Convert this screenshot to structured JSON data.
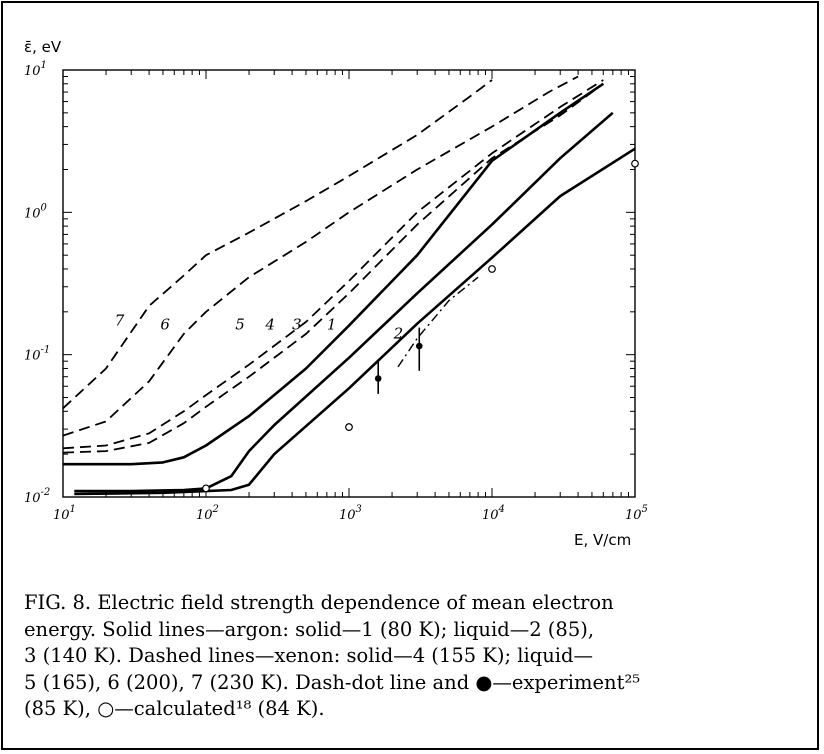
{
  "chart_data": {
    "type": "line",
    "title": "",
    "xlabel": "E, V/cm",
    "ylabel": "ε̄, eV",
    "xscale": "log",
    "yscale": "log",
    "xlim": [
      10,
      100000
    ],
    "ylim": [
      0.01,
      10
    ],
    "x_tick_labels": [
      {
        "value": 10,
        "base": "10",
        "exp": "1"
      },
      {
        "value": 100,
        "base": "10",
        "exp": "2"
      },
      {
        "value": 1000,
        "base": "10",
        "exp": "3"
      },
      {
        "value": 10000,
        "base": "10",
        "exp": "4"
      },
      {
        "value": 100000,
        "base": "10",
        "exp": "5"
      }
    ],
    "y_tick_labels": [
      {
        "value": 0.01,
        "base": "10",
        "exp": "-2"
      },
      {
        "value": 0.1,
        "base": "10",
        "exp": "-1"
      },
      {
        "value": 1,
        "base": "10",
        "exp": "0"
      },
      {
        "value": 10,
        "base": "10",
        "exp": "1"
      }
    ],
    "grid": false,
    "series": [
      {
        "name": "1",
        "style": "solid",
        "label_at": [
          700,
          0.15
        ],
        "points": [
          [
            12,
            0.011
          ],
          [
            30,
            0.011
          ],
          [
            70,
            0.0112
          ],
          [
            100,
            0.0115
          ],
          [
            150,
            0.014
          ],
          [
            200,
            0.021
          ],
          [
            300,
            0.032
          ],
          [
            1000,
            0.095
          ],
          [
            3000,
            0.27
          ],
          [
            10000,
            0.82
          ],
          [
            30000,
            2.4
          ],
          [
            70000,
            5.0
          ]
        ]
      },
      {
        "name": "2",
        "style": "solid",
        "label_at": [
          2050,
          0.13
        ],
        "points": [
          [
            12,
            0.0105
          ],
          [
            50,
            0.0107
          ],
          [
            100,
            0.011
          ],
          [
            150,
            0.0112
          ],
          [
            200,
            0.0122
          ],
          [
            300,
            0.02
          ],
          [
            1000,
            0.058
          ],
          [
            3000,
            0.165
          ],
          [
            10000,
            0.48
          ],
          [
            30000,
            1.3
          ],
          [
            100000,
            2.8
          ]
        ]
      },
      {
        "name": "3",
        "style": "solid",
        "label_at": [
          400,
          0.15
        ],
        "points": [
          [
            10,
            0.017
          ],
          [
            30,
            0.017
          ],
          [
            50,
            0.0175
          ],
          [
            70,
            0.019
          ],
          [
            100,
            0.023
          ],
          [
            200,
            0.037
          ],
          [
            500,
            0.08
          ],
          [
            1000,
            0.16
          ],
          [
            3000,
            0.5
          ],
          [
            10000,
            2.3
          ],
          [
            30000,
            5.0
          ],
          [
            60000,
            8.0
          ]
        ]
      },
      {
        "name": "4",
        "style": "dashed",
        "label_at": [
          260,
          0.15
        ],
        "points": [
          [
            10,
            0.0205
          ],
          [
            20,
            0.021
          ],
          [
            40,
            0.024
          ],
          [
            70,
            0.033
          ],
          [
            100,
            0.043
          ],
          [
            200,
            0.07
          ],
          [
            500,
            0.14
          ],
          [
            1000,
            0.27
          ],
          [
            3000,
            0.82
          ],
          [
            10000,
            2.4
          ],
          [
            30000,
            4.8
          ],
          [
            60000,
            8.0
          ]
        ]
      },
      {
        "name": "5",
        "style": "dashed",
        "label_at": [
          160,
          0.15
        ],
        "points": [
          [
            10,
            0.022
          ],
          [
            20,
            0.023
          ],
          [
            40,
            0.028
          ],
          [
            70,
            0.04
          ],
          [
            100,
            0.052
          ],
          [
            200,
            0.085
          ],
          [
            500,
            0.17
          ],
          [
            1000,
            0.33
          ],
          [
            3000,
            1.0
          ],
          [
            10000,
            2.6
          ],
          [
            30000,
            5.5
          ],
          [
            60000,
            8.5
          ]
        ]
      },
      {
        "name": "6",
        "style": "dashed",
        "label_at": [
          48,
          0.15
        ],
        "points": [
          [
            10,
            0.027
          ],
          [
            20,
            0.034
          ],
          [
            40,
            0.065
          ],
          [
            70,
            0.14
          ],
          [
            100,
            0.2
          ],
          [
            200,
            0.35
          ],
          [
            500,
            0.62
          ],
          [
            1000,
            1.0
          ],
          [
            3000,
            2.0
          ],
          [
            10000,
            4.0
          ],
          [
            25000,
            7.0
          ],
          [
            40000,
            9.0
          ]
        ]
      },
      {
        "name": "7",
        "style": "dashed",
        "label_at": [
          23,
          0.16
        ],
        "points": [
          [
            10,
            0.042
          ],
          [
            20,
            0.08
          ],
          [
            40,
            0.22
          ],
          [
            70,
            0.36
          ],
          [
            100,
            0.5
          ],
          [
            200,
            0.72
          ],
          [
            500,
            1.2
          ],
          [
            1000,
            1.8
          ],
          [
            3000,
            3.5
          ],
          [
            7000,
            6.5
          ],
          [
            10000,
            8.5
          ]
        ]
      },
      {
        "name": "",
        "style": "dash-dot",
        "points": [
          [
            2200,
            0.082
          ],
          [
            3000,
            0.13
          ],
          [
            5000,
            0.24
          ],
          [
            8000,
            0.35
          ]
        ]
      }
    ],
    "experiment_points": [
      {
        "x": 1600,
        "y": 0.068,
        "err_low": 0.053,
        "err_high": 0.09
      },
      {
        "x": 3100,
        "y": 0.115,
        "err_low": 0.077,
        "err_high": 0.155
      }
    ],
    "calculated_points": [
      {
        "x": 100,
        "y": 0.0115
      },
      {
        "x": 1000,
        "y": 0.031
      },
      {
        "x": 10000,
        "y": 0.4
      },
      {
        "x": 100000,
        "y": 2.2
      }
    ]
  },
  "caption": {
    "lines": [
      "FIG. 8.  Electric field strength dependence of mean electron",
      "energy.  Solid lines—argon:  solid—1 (80 K); liquid—2 (85),",
      "3 (140 K).  Dashed lines—xenon:  solid—4 (155 K); liquid—",
      "5 (165), 6 (200), 7 (230 K).  Dash-dot line and ●—experiment²⁵",
      "(85 K),  ○—calculated¹⁸ (84 K)."
    ]
  }
}
